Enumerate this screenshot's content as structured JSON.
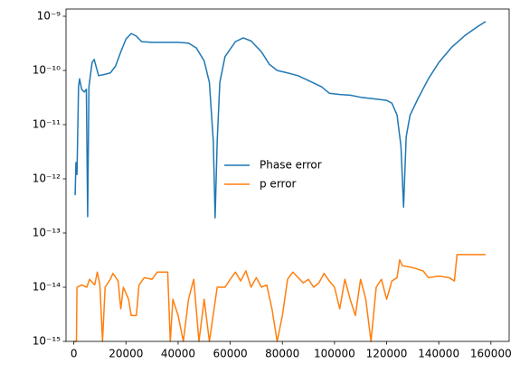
{
  "chart_data": {
    "type": "line",
    "log_y": true,
    "legend": "center",
    "xlim": [
      -3000,
      167000
    ],
    "ylim": [
      1e-15,
      1.36e-09
    ],
    "xticks": [
      0,
      20000,
      40000,
      60000,
      80000,
      100000,
      120000,
      140000,
      160000
    ],
    "yticks": [
      {
        "value": 1e-15,
        "label": "10⁻¹⁵"
      },
      {
        "value": 1e-14,
        "label": "10⁻¹⁴"
      },
      {
        "value": 1e-13,
        "label": "10⁻¹³"
      },
      {
        "value": 1e-12,
        "label": "10⁻¹²"
      },
      {
        "value": 1e-11,
        "label": "10⁻¹¹"
      },
      {
        "value": 1e-10,
        "label": "10⁻¹⁰"
      },
      {
        "value": 1e-09,
        "label": "10⁻⁹"
      }
    ],
    "series": [
      {
        "name": "Phase error",
        "color": "#1f77b4",
        "x": [
          500,
          800,
          1200,
          1800,
          2200,
          3000,
          4000,
          4800,
          5300,
          5800,
          7000,
          7800,
          8500,
          9500,
          12000,
          14000,
          16000,
          18000,
          20000,
          22000,
          24000,
          26000,
          30000,
          40000,
          44000,
          47000,
          50000,
          52000,
          53500,
          54200,
          55000,
          56000,
          58000,
          62000,
          65000,
          68000,
          72000,
          75000,
          78000,
          82000,
          86000,
          90000,
          95000,
          98000,
          102000,
          106000,
          110000,
          115000,
          120000,
          122000,
          124000,
          125500,
          126500,
          127500,
          129000,
          132000,
          136000,
          140000,
          145000,
          150000,
          155000,
          158000
        ],
        "values": [
          5e-13,
          2e-12,
          1.2e-12,
          5e-11,
          7e-11,
          4.5e-11,
          4e-11,
          4.5e-11,
          2e-13,
          5e-11,
          1.4e-10,
          1.6e-10,
          1.2e-10,
          8e-11,
          8.5e-11,
          9e-11,
          1.2e-10,
          2.2e-10,
          3.8e-10,
          4.8e-10,
          4.3e-10,
          3.4e-10,
          3.3e-10,
          3.3e-10,
          3.2e-10,
          2.6e-10,
          1.5e-10,
          6e-11,
          5e-12,
          1.9e-13,
          5e-12,
          6e-11,
          1.8e-10,
          3.4e-10,
          4e-10,
          3.5e-10,
          2.2e-10,
          1.3e-10,
          1e-10,
          9e-11,
          8e-11,
          6.5e-11,
          5e-11,
          3.8e-11,
          3.6e-11,
          3.5e-11,
          3.2e-11,
          3e-11,
          2.8e-11,
          2.5e-11,
          1.5e-11,
          4e-12,
          3e-13,
          6e-12,
          1.5e-11,
          3e-11,
          7e-11,
          1.4e-10,
          2.7e-10,
          4.4e-10,
          6.5e-10,
          8e-10
        ]
      },
      {
        "name": "p error",
        "color": "#ff7f0e",
        "x": [
          0,
          1000,
          1200,
          3000,
          5000,
          6000,
          8000,
          9000,
          10000,
          11000,
          12000,
          14000,
          15000,
          17000,
          18000,
          19000,
          21000,
          22000,
          24000,
          25000,
          27000,
          30000,
          32000,
          36000,
          37000,
          38000,
          40000,
          42000,
          44000,
          46000,
          48000,
          50000,
          52000,
          55000,
          58000,
          60000,
          62000,
          64000,
          66000,
          68000,
          70000,
          72000,
          74000,
          76000,
          78000,
          80000,
          82000,
          84000,
          88000,
          90000,
          92000,
          94000,
          96000,
          98000,
          100000,
          102000,
          104000,
          106000,
          108000,
          110000,
          112000,
          114000,
          116000,
          118000,
          120000,
          122000,
          124000,
          125000,
          126000,
          130000,
          134000,
          136000,
          140000,
          144000,
          146000,
          147000,
          150000,
          154000,
          158000
        ],
        "values": [
          1e-15,
          1e-15,
          1e-14,
          1.1e-14,
          1e-14,
          1.4e-14,
          1.1e-14,
          1.9e-14,
          1.1e-14,
          1e-15,
          1e-14,
          1.4e-14,
          1.8e-14,
          1.3e-14,
          4e-15,
          1e-14,
          6e-15,
          3e-15,
          3e-15,
          1.1e-14,
          1.5e-14,
          1.4e-14,
          1.9e-14,
          1.9e-14,
          1e-15,
          6e-15,
          3e-15,
          1e-15,
          6e-15,
          1.4e-14,
          1e-15,
          6e-15,
          1e-15,
          1e-14,
          1e-14,
          1.4e-14,
          1.9e-14,
          1.3e-14,
          2e-14,
          1e-14,
          1.5e-14,
          1e-14,
          1.1e-14,
          4e-15,
          1e-15,
          3e-15,
          1.4e-14,
          1.9e-14,
          1.2e-14,
          1.4e-14,
          1e-14,
          1.2e-14,
          1.8e-14,
          1.3e-14,
          1e-14,
          4e-15,
          1.4e-14,
          6e-15,
          3e-15,
          1.4e-14,
          6e-15,
          1e-15,
          1e-14,
          1.4e-14,
          6e-15,
          1.3e-14,
          1.5e-14,
          3.2e-14,
          2.5e-14,
          2.3e-14,
          2e-14,
          1.5e-14,
          1.6e-14,
          1.5e-14,
          1.3e-14,
          4e-14,
          4e-14,
          4e-14,
          4e-14
        ]
      }
    ]
  }
}
